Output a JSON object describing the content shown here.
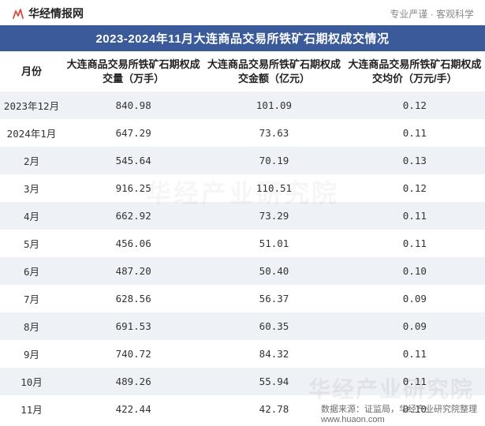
{
  "header": {
    "brand": "华经情报网",
    "slogan": "专业严谨 · 客观科学",
    "brand_icon_color": "#d84a3a"
  },
  "title": "2023-2024年11月大连商品交易所铁矿石期权成交情况",
  "table": {
    "columns": [
      "月份",
      "大连商品交易所铁矿石期权成交量（万手）",
      "大连商品交易所铁矿石期权成交金额（亿元）",
      "大连商品交易所铁矿石期权成交均价（万元/手）"
    ],
    "rows": [
      [
        "2023年12月",
        "840.98",
        "101.09",
        "0.12"
      ],
      [
        "2024年1月",
        "647.29",
        "73.63",
        "0.11"
      ],
      [
        "2月",
        "545.64",
        "70.19",
        "0.13"
      ],
      [
        "3月",
        "916.25",
        "110.51",
        "0.12"
      ],
      [
        "4月",
        "662.92",
        "73.29",
        "0.11"
      ],
      [
        "5月",
        "456.06",
        "51.01",
        "0.11"
      ],
      [
        "6月",
        "487.20",
        "50.40",
        "0.10"
      ],
      [
        "7月",
        "628.56",
        "56.37",
        "0.09"
      ],
      [
        "8月",
        "691.53",
        "60.35",
        "0.09"
      ],
      [
        "9月",
        "740.72",
        "84.32",
        "0.11"
      ],
      [
        "10月",
        "489.26",
        "55.94",
        "0.11"
      ],
      [
        "11月",
        "422.44",
        "42.78",
        "0.10"
      ]
    ],
    "alt_row_bg": "#eef1f6",
    "header_font_size": 13,
    "cell_font_size": 12.5
  },
  "footer": {
    "source_label": "数据来源：证监局，华经产业研究院整理",
    "site": "www.huaon.com"
  },
  "watermark": "华经产业研究院",
  "colors": {
    "title_bg": "#3a5a9a",
    "title_fg": "#ffffff",
    "text": "#333333",
    "slogan": "#888888"
  }
}
